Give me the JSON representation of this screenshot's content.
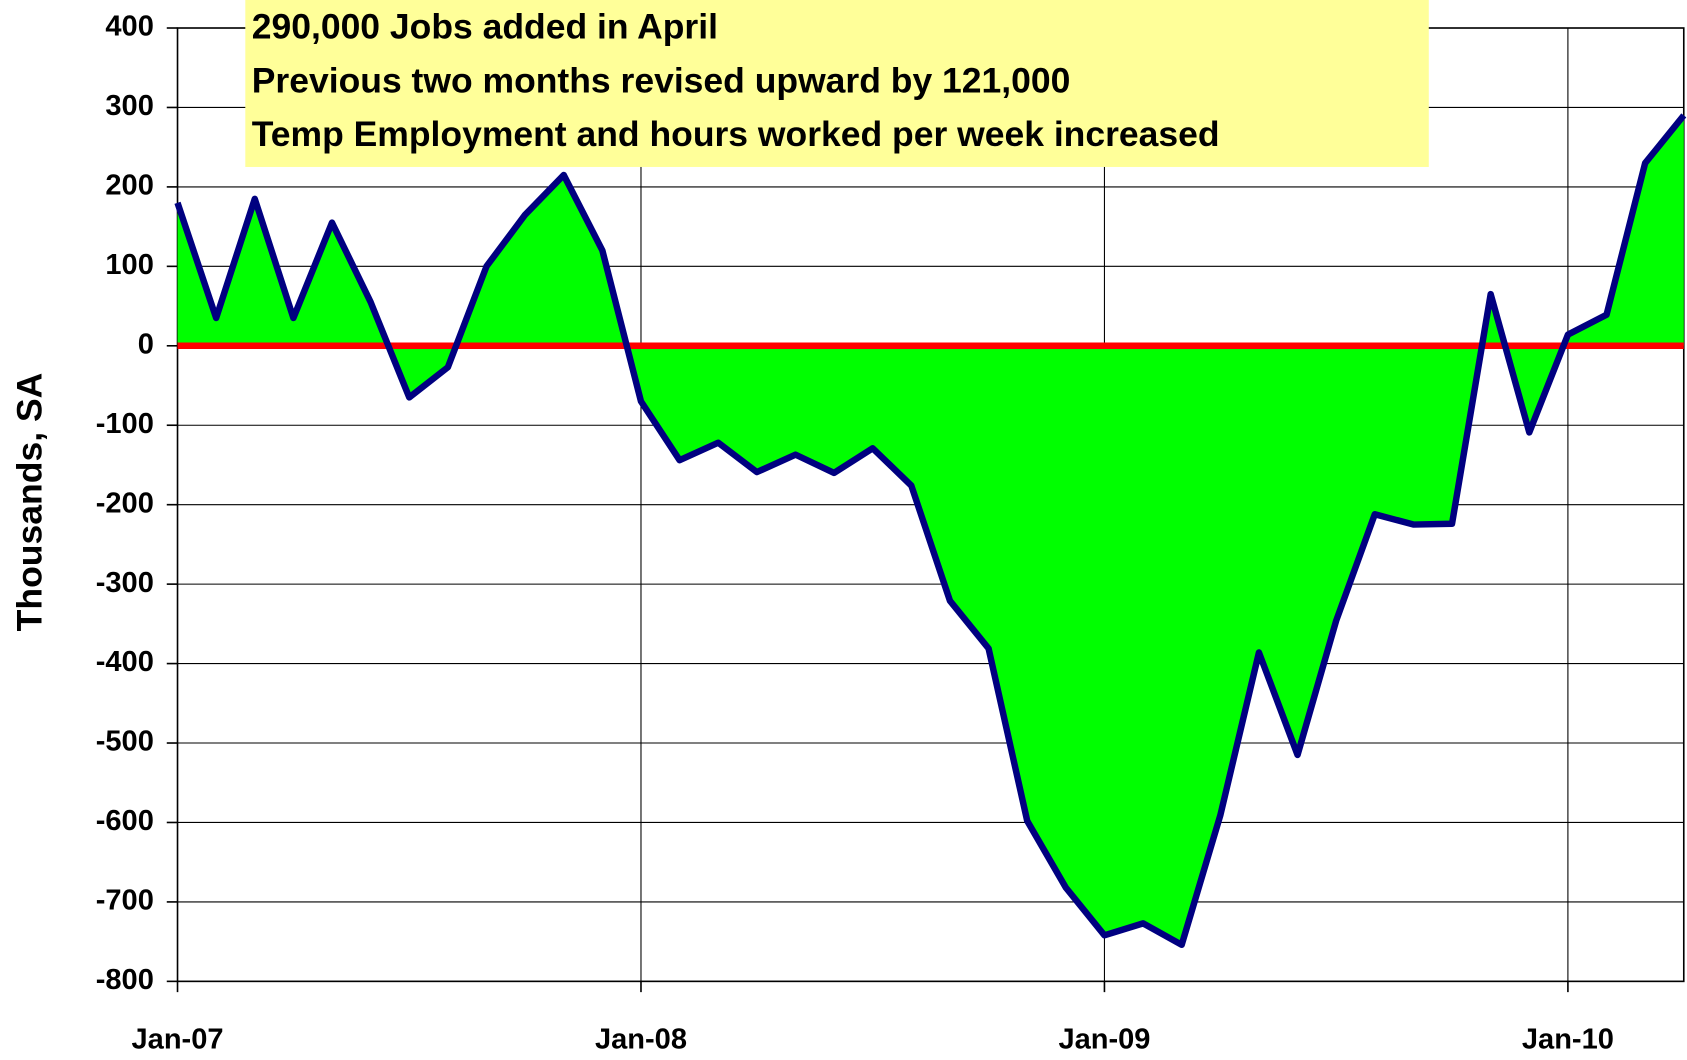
{
  "chart_data": {
    "type": "area",
    "y_label": "Thousands, SA",
    "annotations": [
      "290,000 Jobs added in April",
      "Previous two months revised upward by 121,000",
      "Temp Employment and hours worked per week increased"
    ],
    "categories": [
      "Jan-07",
      null,
      null,
      null,
      null,
      null,
      null,
      null,
      null,
      null,
      null,
      null,
      "Jan-08",
      null,
      null,
      null,
      null,
      null,
      null,
      null,
      null,
      null,
      null,
      null,
      "Jan-09",
      null,
      null,
      null,
      null,
      null,
      null,
      null,
      null,
      null,
      null,
      null,
      "Jan-10",
      null,
      null,
      null
    ],
    "values": [
      180,
      35,
      185,
      35,
      155,
      55,
      -65,
      -27,
      100,
      165,
      215,
      120,
      -70,
      -144,
      -122,
      -159,
      -137,
      -160,
      -129,
      -176,
      -321,
      -381,
      -598,
      -682,
      -742,
      -727,
      -754,
      -591,
      -386,
      -515,
      -346,
      -212,
      -225,
      -224,
      65,
      -109,
      14,
      39,
      230,
      290
    ],
    "color": "#00ff00",
    "line_color": "#000080",
    "zero_line_color": "#ff0000",
    "annotation_color": "#ffff99",
    "ylim": [
      -800,
      400
    ],
    "yticks": [
      -800,
      -700,
      -600,
      -500,
      -400,
      -300,
      -200,
      -100,
      0,
      100,
      200,
      300,
      400
    ],
    "grid": true
  }
}
